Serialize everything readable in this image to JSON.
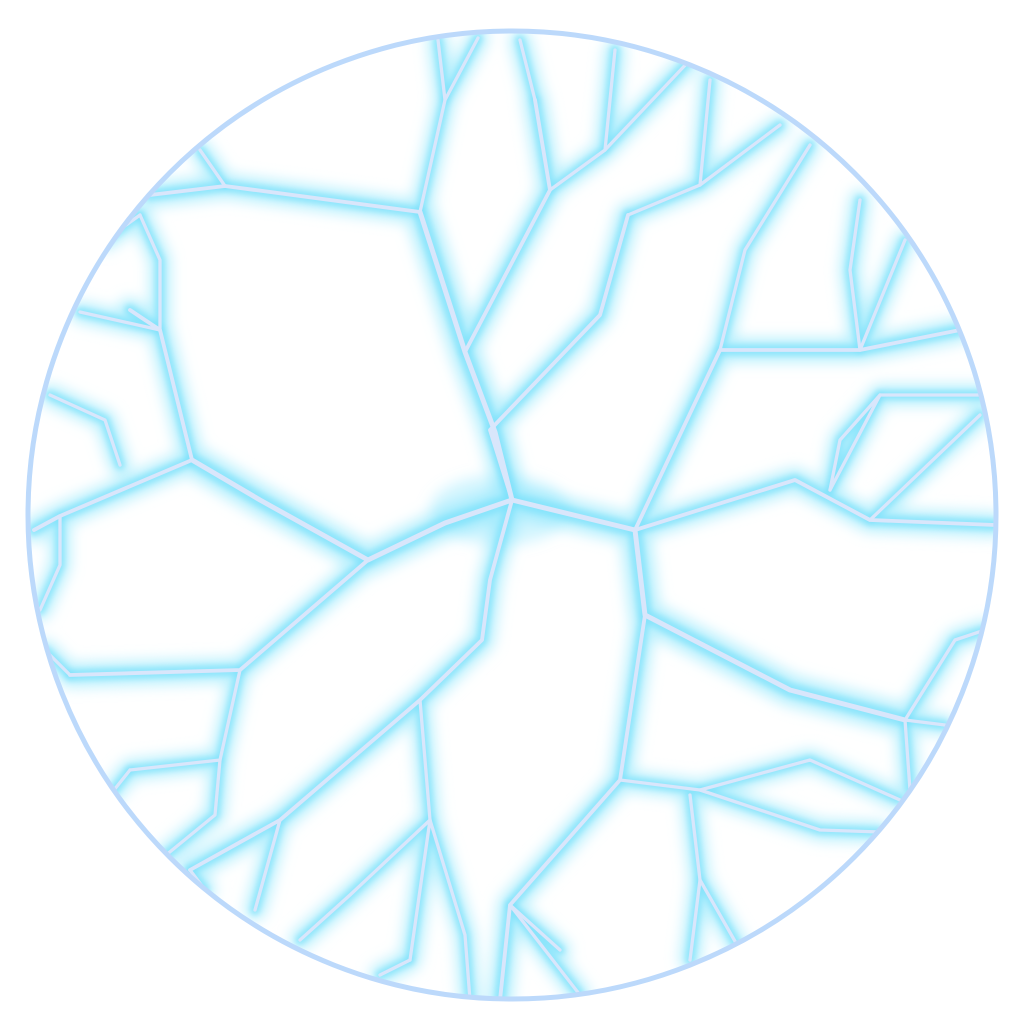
{
  "image": {
    "subject": "circular-crack-pattern",
    "colors": {
      "background": "#ffffff",
      "rim": "#bcd9fb",
      "glow": "#7fe2fb",
      "glow_soft": "#b9f0fd",
      "core": "#d9e6fb"
    }
  }
}
